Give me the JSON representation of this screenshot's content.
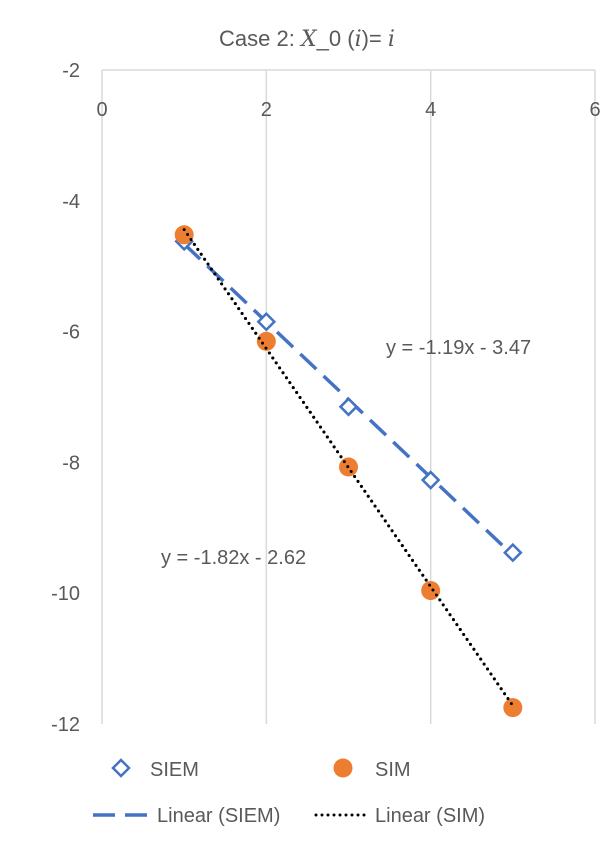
{
  "chart_data": {
    "type": "scatter",
    "title": {
      "prefix": "Case 2: ",
      "math1": "X",
      "mid": "_0 (",
      "math2": "i",
      "close": ")= ",
      "math3": "i"
    },
    "xlim": [
      0,
      6
    ],
    "ylim": [
      -12,
      -2
    ],
    "xticks": [
      "0",
      "2",
      "4",
      "6"
    ],
    "yticks": [
      "-2",
      "-4",
      "-6",
      "-8",
      "-10",
      "-12"
    ],
    "grid": "vertical",
    "series": [
      {
        "name": "SIEM",
        "marker": "diamond-open",
        "color": "#4472C4",
        "x": [
          1,
          2,
          3,
          4,
          5
        ],
        "y": [
          -4.62,
          -5.85,
          -7.15,
          -8.27,
          -9.38
        ]
      },
      {
        "name": "SIM",
        "marker": "circle",
        "color": "#ED7D31",
        "x": [
          1,
          2,
          3,
          4,
          5
        ],
        "y": [
          -4.52,
          -6.15,
          -8.07,
          -9.96,
          -11.75
        ]
      }
    ],
    "trendlines": [
      {
        "name": "Linear (SIEM)",
        "style": "dashed",
        "color": "#4472C4",
        "slope": -1.19,
        "intercept": -3.47,
        "equation": "y = -1.19x - 3.47"
      },
      {
        "name": "Linear (SIM)",
        "style": "dotted",
        "color": "#000000",
        "slope": -1.82,
        "intercept": -2.62,
        "equation": "y = -1.82x - 2.62"
      }
    ],
    "legend_position": "bottom"
  }
}
